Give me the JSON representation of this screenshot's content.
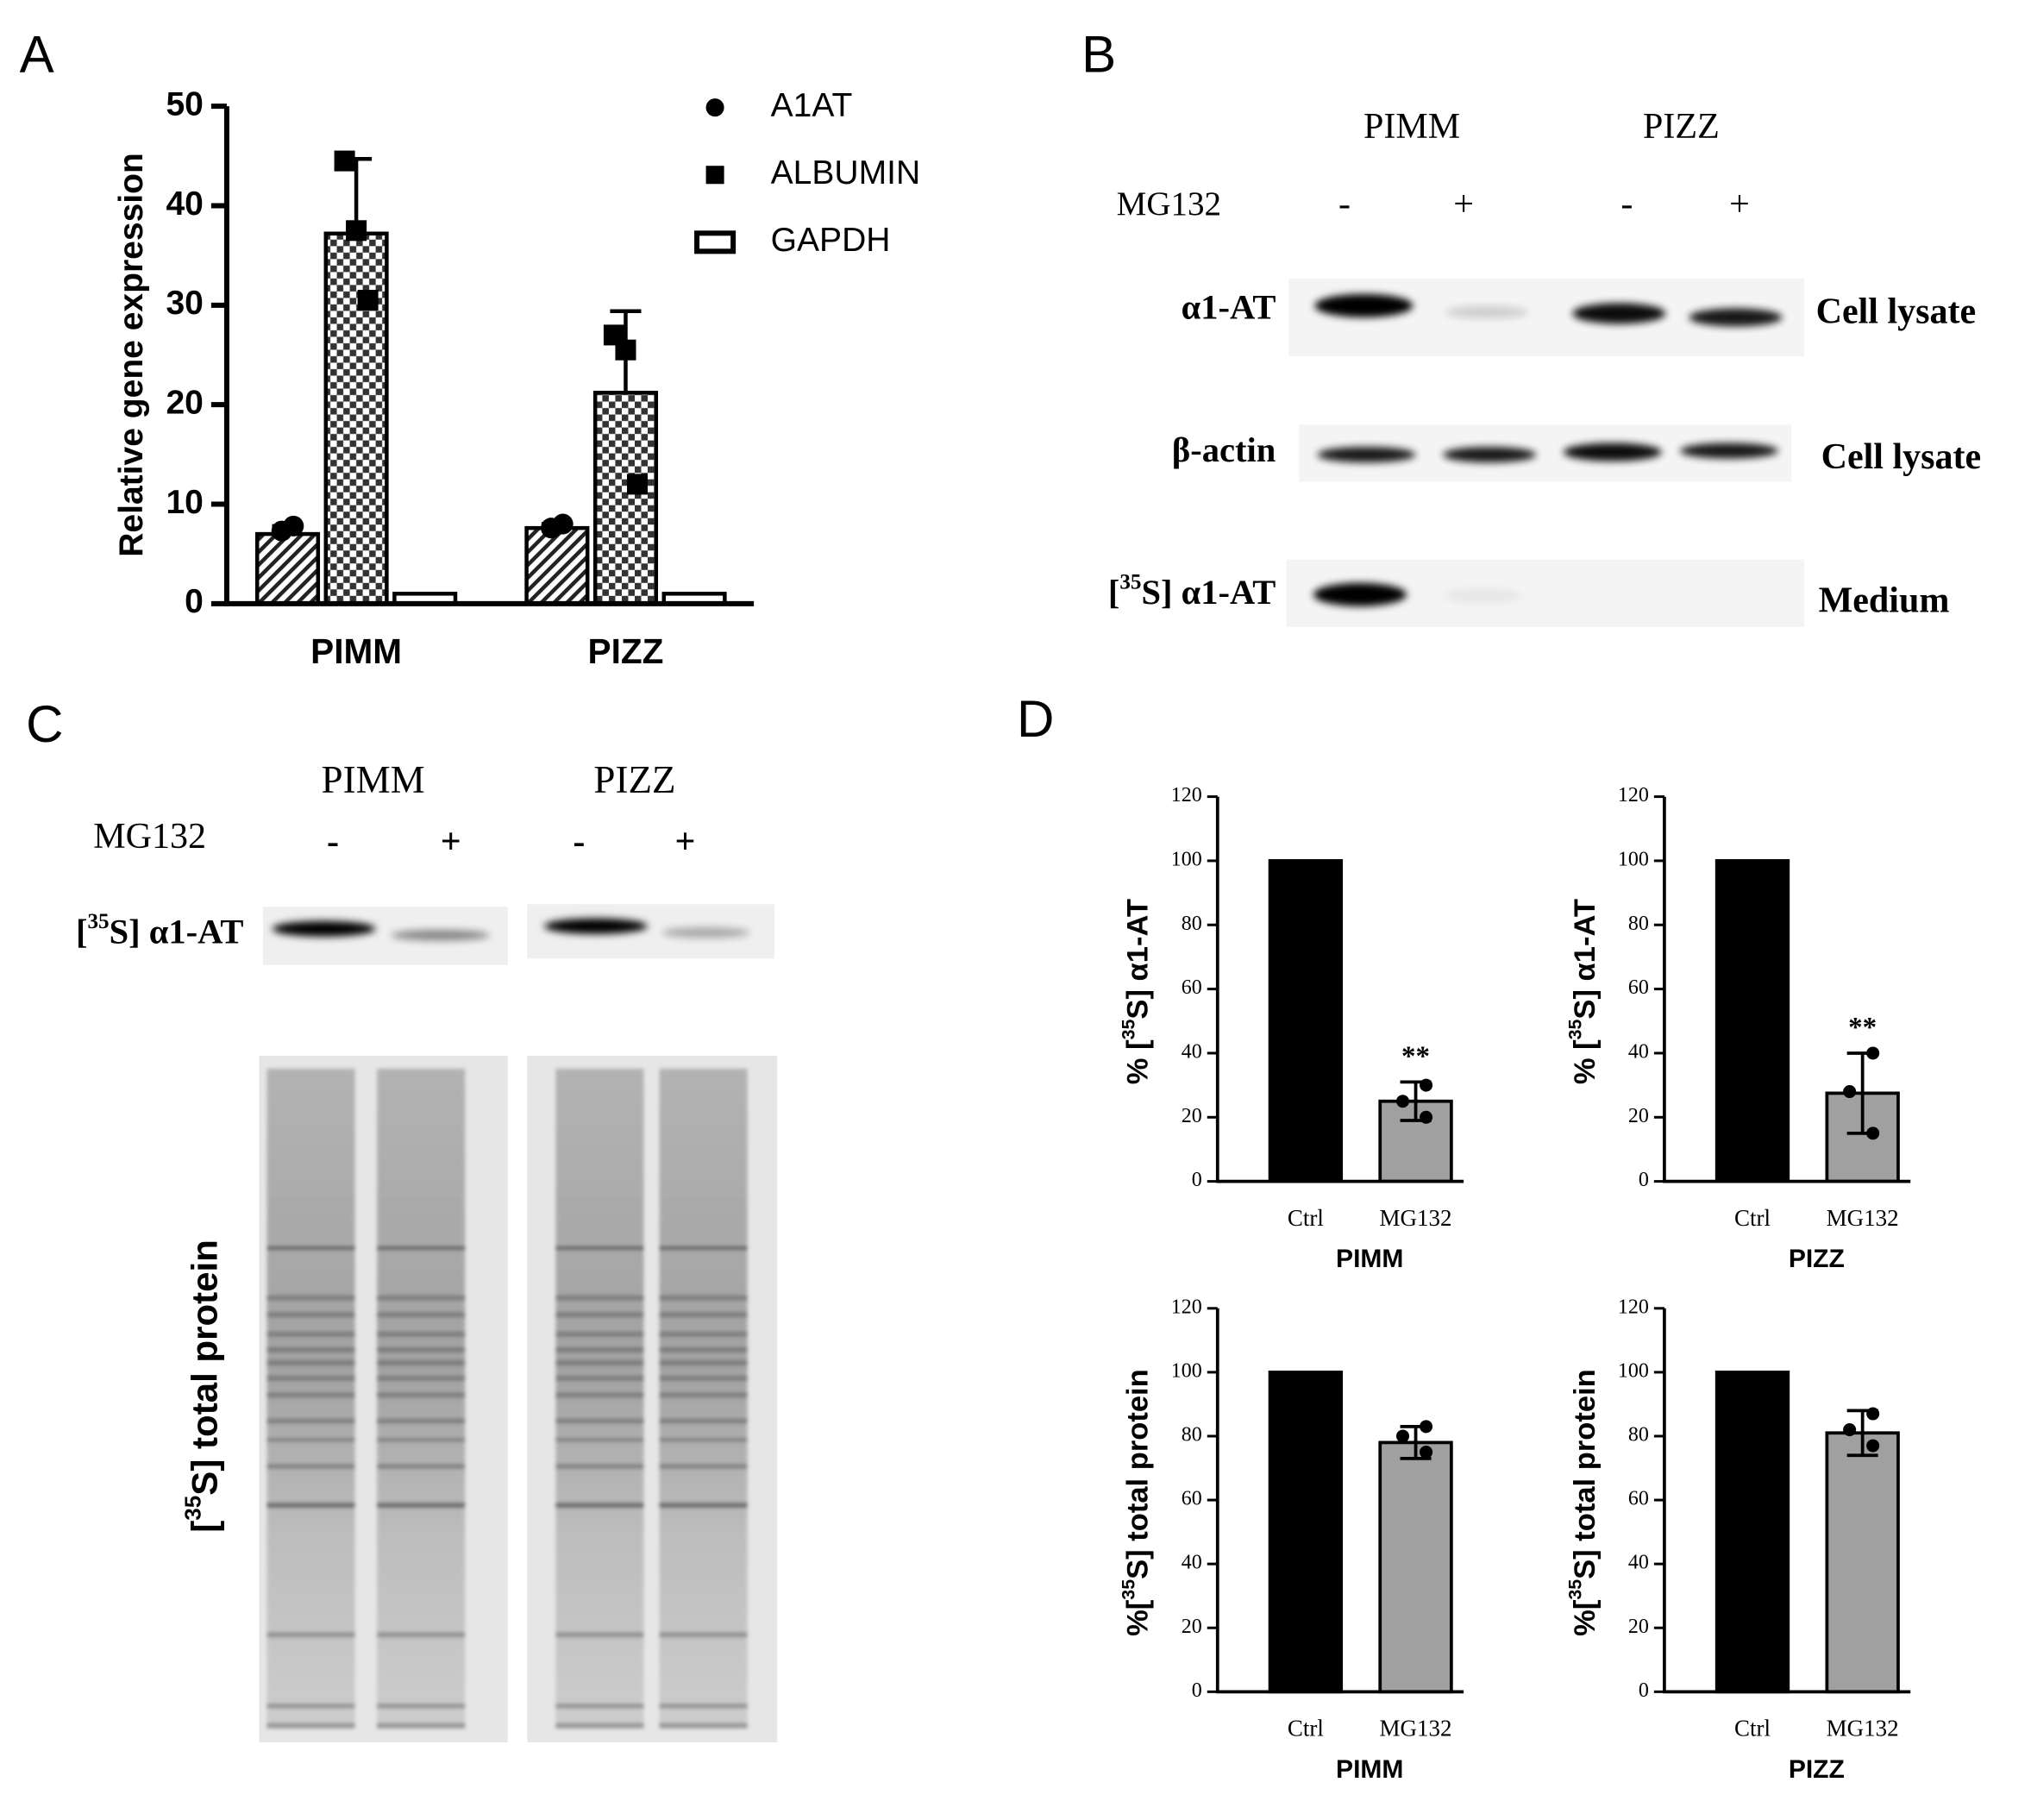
{
  "panel_labels": [
    "A",
    "B",
    "C",
    "D"
  ],
  "chart_data": [
    {
      "type": "bar",
      "categories": [
        "PIMM",
        "PIZZ"
      ],
      "ylabel": "Relative gene expression",
      "ylim": [
        0,
        50
      ],
      "yticks": [
        0,
        10,
        20,
        30,
        40,
        50
      ],
      "legend": "upper right",
      "series": [
        {
          "name": "A1AT",
          "color": "#000000",
          "pattern": "hatch",
          "marker": "circle",
          "values": [
            7,
            7.6
          ],
          "errors": [
            0.8,
            0.4
          ],
          "points": [
            [
              7.3,
              7.8
            ],
            [
              7.6,
              8
            ]
          ]
        },
        {
          "name": "ALBUMIN",
          "color": "#000000",
          "pattern": "checker",
          "marker": "square",
          "values": [
            37.2,
            21.2
          ],
          "errors": [
            7.5,
            8.2
          ],
          "points": [
            [
              44.5,
              37.5,
              30.5
            ],
            [
              27,
              25.5,
              12
            ]
          ]
        },
        {
          "name": "GAPDH",
          "color": "#000000",
          "pattern": "none",
          "marker": "open-rect",
          "values": [
            1,
            1
          ]
        }
      ]
    },
    {
      "type": "bar",
      "categories": [
        "Ctrl",
        "MG132"
      ],
      "values": [
        100,
        25
      ],
      "errors": [
        null,
        6
      ],
      "points": [
        null,
        [
          30,
          25,
          20
        ]
      ],
      "colors": [
        "#000000",
        "#a0a0a0"
      ],
      "annotations": [
        null,
        "**"
      ],
      "xlabel": "PIMM",
      "ylabel": [
        "% [",
        "35",
        "S] α1-AT"
      ],
      "ylim": [
        0,
        120
      ],
      "yticks": [
        0,
        20,
        40,
        60,
        80,
        100,
        120
      ]
    },
    {
      "type": "bar",
      "categories": [
        "Ctrl",
        "MG132"
      ],
      "values": [
        100,
        27.5
      ],
      "errors": [
        null,
        12.5
      ],
      "points": [
        null,
        [
          40,
          28,
          15
        ]
      ],
      "colors": [
        "#000000",
        "#a0a0a0"
      ],
      "annotations": [
        null,
        "**"
      ],
      "xlabel": "PIZZ",
      "ylabel": [
        "% [",
        "35",
        "S] α1-AT"
      ],
      "ylim": [
        0,
        120
      ],
      "yticks": [
        0,
        20,
        40,
        60,
        80,
        100,
        120
      ]
    },
    {
      "type": "bar",
      "categories": [
        "Ctrl",
        "MG132"
      ],
      "values": [
        100,
        78
      ],
      "errors": [
        null,
        5
      ],
      "points": [
        null,
        [
          83,
          80,
          75
        ]
      ],
      "colors": [
        "#000000",
        "#a0a0a0"
      ],
      "xlabel": "PIMM",
      "ylabel": [
        "%[",
        "35",
        "S] total protein"
      ],
      "ylim": [
        0,
        120
      ],
      "yticks": [
        0,
        20,
        40,
        60,
        80,
        100,
        120
      ]
    },
    {
      "type": "bar",
      "categories": [
        "Ctrl",
        "MG132"
      ],
      "values": [
        100,
        81
      ],
      "errors": [
        null,
        7
      ],
      "points": [
        null,
        [
          87,
          82,
          77
        ]
      ],
      "colors": [
        "#000000",
        "#a0a0a0"
      ],
      "xlabel": "PIZZ",
      "ylabel": [
        "%[",
        "35",
        "S] total protein"
      ],
      "ylim": [
        0,
        120
      ],
      "yticks": [
        0,
        20,
        40,
        60,
        80,
        100,
        120
      ]
    }
  ],
  "blot_b": {
    "groups": [
      "PIMM",
      "PIZZ"
    ],
    "treatment": "MG132",
    "lanes": [
      "-",
      "+",
      "-",
      "+"
    ],
    "rows": [
      {
        "label": "α1-AT",
        "sample": "Cell lysate"
      },
      {
        "label": "β-actin",
        "sample": "Cell lysate"
      },
      {
        "label": [
          "[",
          "35",
          "S] α1-AT"
        ],
        "sample": "Medium"
      }
    ]
  },
  "blot_c": {
    "groups": [
      "PIMM",
      "PIZZ"
    ],
    "treatment": "MG132",
    "lanes": [
      "-",
      "+",
      "-",
      "+"
    ],
    "rows": [
      {
        "label": [
          "[",
          "35",
          "S] α1-AT"
        ]
      }
    ],
    "gel_label": [
      "[",
      "35",
      "S] total protein"
    ]
  }
}
